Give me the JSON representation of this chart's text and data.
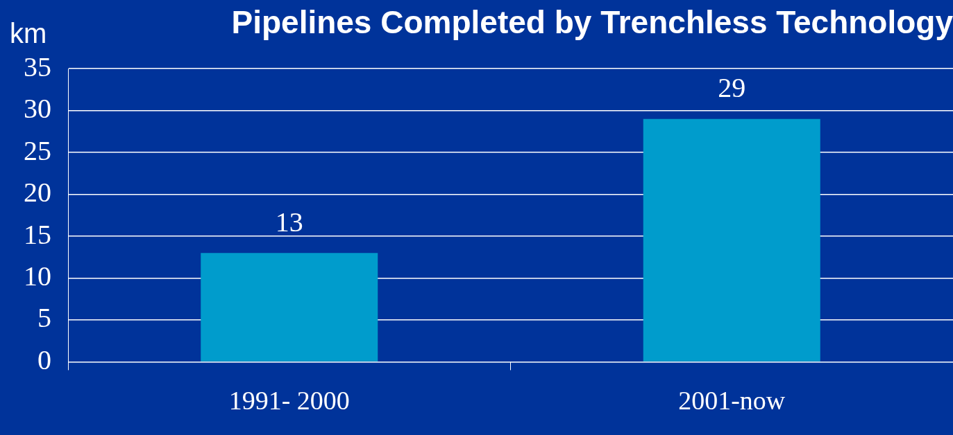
{
  "chart_data": {
    "type": "bar",
    "title": "Pipelines Completed by Trenchless Technology",
    "ylabel": "km",
    "categories": [
      "1991- 2000",
      "2001-now"
    ],
    "values": [
      13,
      29
    ],
    "color": "#009ccc",
    "ylim": [
      0,
      35
    ],
    "yticks": [
      0,
      5,
      10,
      15,
      20,
      25,
      30,
      35
    ],
    "grid": "y",
    "data_labels": true,
    "legend": false
  }
}
